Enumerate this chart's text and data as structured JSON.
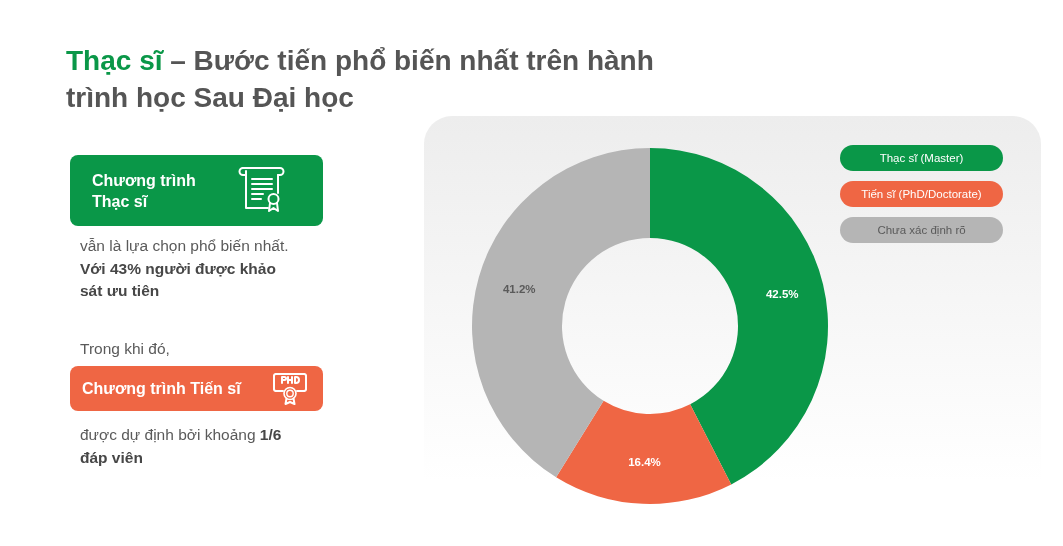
{
  "chart_data": {
    "type": "donut",
    "title": "Thạc sĩ – Bước tiến phổ biến nhất trên hành trình học Sau Đại học",
    "categories": [
      "Thạc sĩ (Master)",
      "Tiến sĩ (PhD/Doctorate)",
      "Chưa xác định rõ"
    ],
    "values": [
      42.5,
      16.4,
      41.2
    ],
    "colors": [
      "#0a9748",
      "#ef6644",
      "#b5b5b5"
    ],
    "value_labels": [
      "42.5%",
      "16.4%",
      "41.2%"
    ],
    "legend": "top right",
    "annotations": [
      "Chương trình Thạc sĩ",
      "vẫn là lựa chọn phổ biến nhất.",
      "Với 43% người được khảo sát ưu tiên",
      "Trong khi đó,",
      "Chương trình Tiến sĩ",
      "được dự định bởi khoảng",
      "1/6 đáp viên"
    ]
  }
}
